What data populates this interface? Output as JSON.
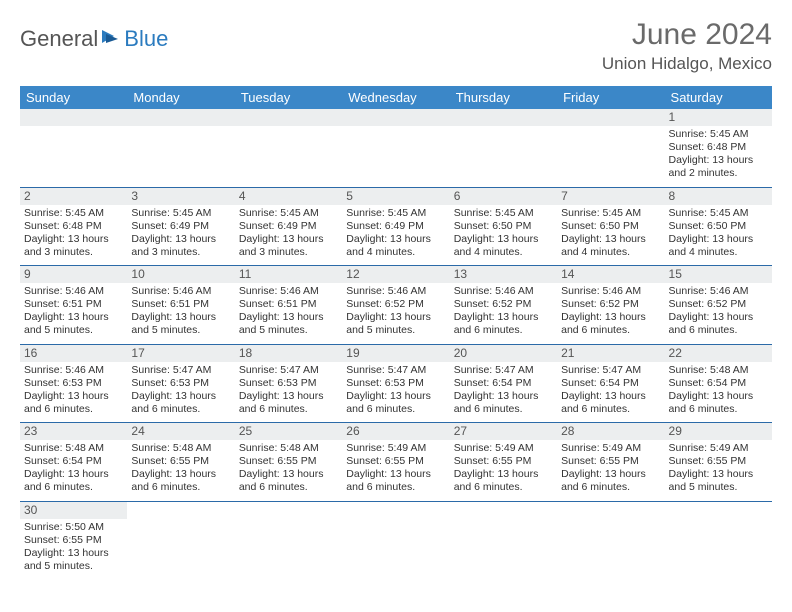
{
  "brand": {
    "part1": "General",
    "part2": "Blue"
  },
  "title": "June 2024",
  "location": "Union Hidalgo, Mexico",
  "colors": {
    "header_bg": "#3b87c8",
    "header_text": "#ffffff",
    "day_border": "#2b6aa8",
    "daynum_bg": "#eceeef",
    "text": "#333333",
    "title": "#6a6a6a"
  },
  "weekdays": [
    "Sunday",
    "Monday",
    "Tuesday",
    "Wednesday",
    "Thursday",
    "Friday",
    "Saturday"
  ],
  "weeks": [
    [
      null,
      null,
      null,
      null,
      null,
      null,
      {
        "n": "1",
        "sr": "5:45 AM",
        "ss": "6:48 PM",
        "dl": "13 hours and 2 minutes."
      }
    ],
    [
      {
        "n": "2",
        "sr": "5:45 AM",
        "ss": "6:48 PM",
        "dl": "13 hours and 3 minutes."
      },
      {
        "n": "3",
        "sr": "5:45 AM",
        "ss": "6:49 PM",
        "dl": "13 hours and 3 minutes."
      },
      {
        "n": "4",
        "sr": "5:45 AM",
        "ss": "6:49 PM",
        "dl": "13 hours and 3 minutes."
      },
      {
        "n": "5",
        "sr": "5:45 AM",
        "ss": "6:49 PM",
        "dl": "13 hours and 4 minutes."
      },
      {
        "n": "6",
        "sr": "5:45 AM",
        "ss": "6:50 PM",
        "dl": "13 hours and 4 minutes."
      },
      {
        "n": "7",
        "sr": "5:45 AM",
        "ss": "6:50 PM",
        "dl": "13 hours and 4 minutes."
      },
      {
        "n": "8",
        "sr": "5:45 AM",
        "ss": "6:50 PM",
        "dl": "13 hours and 4 minutes."
      }
    ],
    [
      {
        "n": "9",
        "sr": "5:46 AM",
        "ss": "6:51 PM",
        "dl": "13 hours and 5 minutes."
      },
      {
        "n": "10",
        "sr": "5:46 AM",
        "ss": "6:51 PM",
        "dl": "13 hours and 5 minutes."
      },
      {
        "n": "11",
        "sr": "5:46 AM",
        "ss": "6:51 PM",
        "dl": "13 hours and 5 minutes."
      },
      {
        "n": "12",
        "sr": "5:46 AM",
        "ss": "6:52 PM",
        "dl": "13 hours and 5 minutes."
      },
      {
        "n": "13",
        "sr": "5:46 AM",
        "ss": "6:52 PM",
        "dl": "13 hours and 6 minutes."
      },
      {
        "n": "14",
        "sr": "5:46 AM",
        "ss": "6:52 PM",
        "dl": "13 hours and 6 minutes."
      },
      {
        "n": "15",
        "sr": "5:46 AM",
        "ss": "6:52 PM",
        "dl": "13 hours and 6 minutes."
      }
    ],
    [
      {
        "n": "16",
        "sr": "5:46 AM",
        "ss": "6:53 PM",
        "dl": "13 hours and 6 minutes."
      },
      {
        "n": "17",
        "sr": "5:47 AM",
        "ss": "6:53 PM",
        "dl": "13 hours and 6 minutes."
      },
      {
        "n": "18",
        "sr": "5:47 AM",
        "ss": "6:53 PM",
        "dl": "13 hours and 6 minutes."
      },
      {
        "n": "19",
        "sr": "5:47 AM",
        "ss": "6:53 PM",
        "dl": "13 hours and 6 minutes."
      },
      {
        "n": "20",
        "sr": "5:47 AM",
        "ss": "6:54 PM",
        "dl": "13 hours and 6 minutes."
      },
      {
        "n": "21",
        "sr": "5:47 AM",
        "ss": "6:54 PM",
        "dl": "13 hours and 6 minutes."
      },
      {
        "n": "22",
        "sr": "5:48 AM",
        "ss": "6:54 PM",
        "dl": "13 hours and 6 minutes."
      }
    ],
    [
      {
        "n": "23",
        "sr": "5:48 AM",
        "ss": "6:54 PM",
        "dl": "13 hours and 6 minutes."
      },
      {
        "n": "24",
        "sr": "5:48 AM",
        "ss": "6:55 PM",
        "dl": "13 hours and 6 minutes."
      },
      {
        "n": "25",
        "sr": "5:48 AM",
        "ss": "6:55 PM",
        "dl": "13 hours and 6 minutes."
      },
      {
        "n": "26",
        "sr": "5:49 AM",
        "ss": "6:55 PM",
        "dl": "13 hours and 6 minutes."
      },
      {
        "n": "27",
        "sr": "5:49 AM",
        "ss": "6:55 PM",
        "dl": "13 hours and 6 minutes."
      },
      {
        "n": "28",
        "sr": "5:49 AM",
        "ss": "6:55 PM",
        "dl": "13 hours and 6 minutes."
      },
      {
        "n": "29",
        "sr": "5:49 AM",
        "ss": "6:55 PM",
        "dl": "13 hours and 5 minutes."
      }
    ],
    [
      {
        "n": "30",
        "sr": "5:50 AM",
        "ss": "6:55 PM",
        "dl": "13 hours and 5 minutes."
      },
      null,
      null,
      null,
      null,
      null,
      null
    ]
  ],
  "labels": {
    "sunrise": "Sunrise:",
    "sunset": "Sunset:",
    "daylight": "Daylight:"
  }
}
